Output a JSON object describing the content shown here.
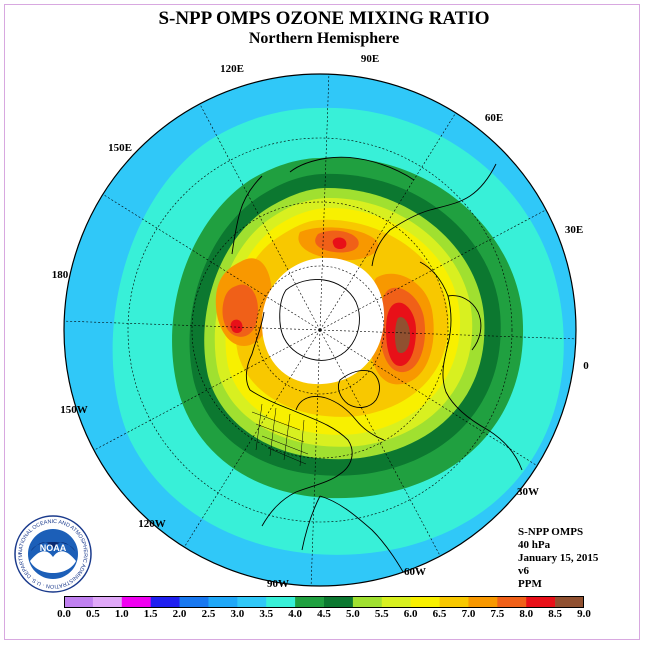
{
  "header": {
    "title": "S-NPP OMPS OZONE MIXING RATIO",
    "subtitle": "Northern Hemisphere"
  },
  "map": {
    "projection": "north polar stereographic",
    "longitude_labels": [
      "90E",
      "60E",
      "30E",
      "0",
      "30W",
      "60W",
      "90W",
      "120W",
      "150W",
      "180",
      "150E",
      "120E"
    ],
    "ocean_color": "#30c8f8",
    "polar_night_color": "#ffffff",
    "bands": [
      {
        "level": 3.5,
        "color": "#38f0d8"
      },
      {
        "level": 4.0,
        "color": "#20a040"
      },
      {
        "level": 4.5,
        "color": "#0c7830"
      },
      {
        "level": 5.0,
        "color": "#a0e030"
      },
      {
        "level": 5.5,
        "color": "#d8f020"
      },
      {
        "level": 6.0,
        "color": "#f8f000"
      },
      {
        "level": 6.5,
        "color": "#f8c800"
      },
      {
        "level": 7.0,
        "color": "#f89800"
      },
      {
        "level": 7.5,
        "color": "#f06018"
      },
      {
        "level": 8.0,
        "color": "#e81018"
      }
    ]
  },
  "info": {
    "instrument": "S-NPP OMPS",
    "level": "40 hPa",
    "date": "January 15, 2015",
    "version": "v6",
    "units": "PPM"
  },
  "logo": {
    "text": "NOAA",
    "ring_text": "NATIONAL OCEANIC AND ATMOSPHERIC ADMINISTRATION · U.S. DEPARTMENT OF COMMERCE"
  },
  "colorbar": {
    "labels": [
      "0.0",
      "0.5",
      "1.0",
      "1.5",
      "2.0",
      "2.5",
      "3.0",
      "3.5",
      "4.0",
      "4.5",
      "5.0",
      "5.5",
      "6.0",
      "6.5",
      "7.0",
      "7.5",
      "8.0",
      "8.5",
      "9.0"
    ],
    "colors": [
      "#c080f0",
      "#e0a8f8",
      "#f000f0",
      "#2020f0",
      "#1878f0",
      "#20a8f8",
      "#30c8f8",
      "#38f0d8",
      "#20a040",
      "#0c7830",
      "#a0e030",
      "#d8f020",
      "#f8f000",
      "#f8c800",
      "#f89800",
      "#f06018",
      "#e81018",
      "#905030"
    ]
  }
}
